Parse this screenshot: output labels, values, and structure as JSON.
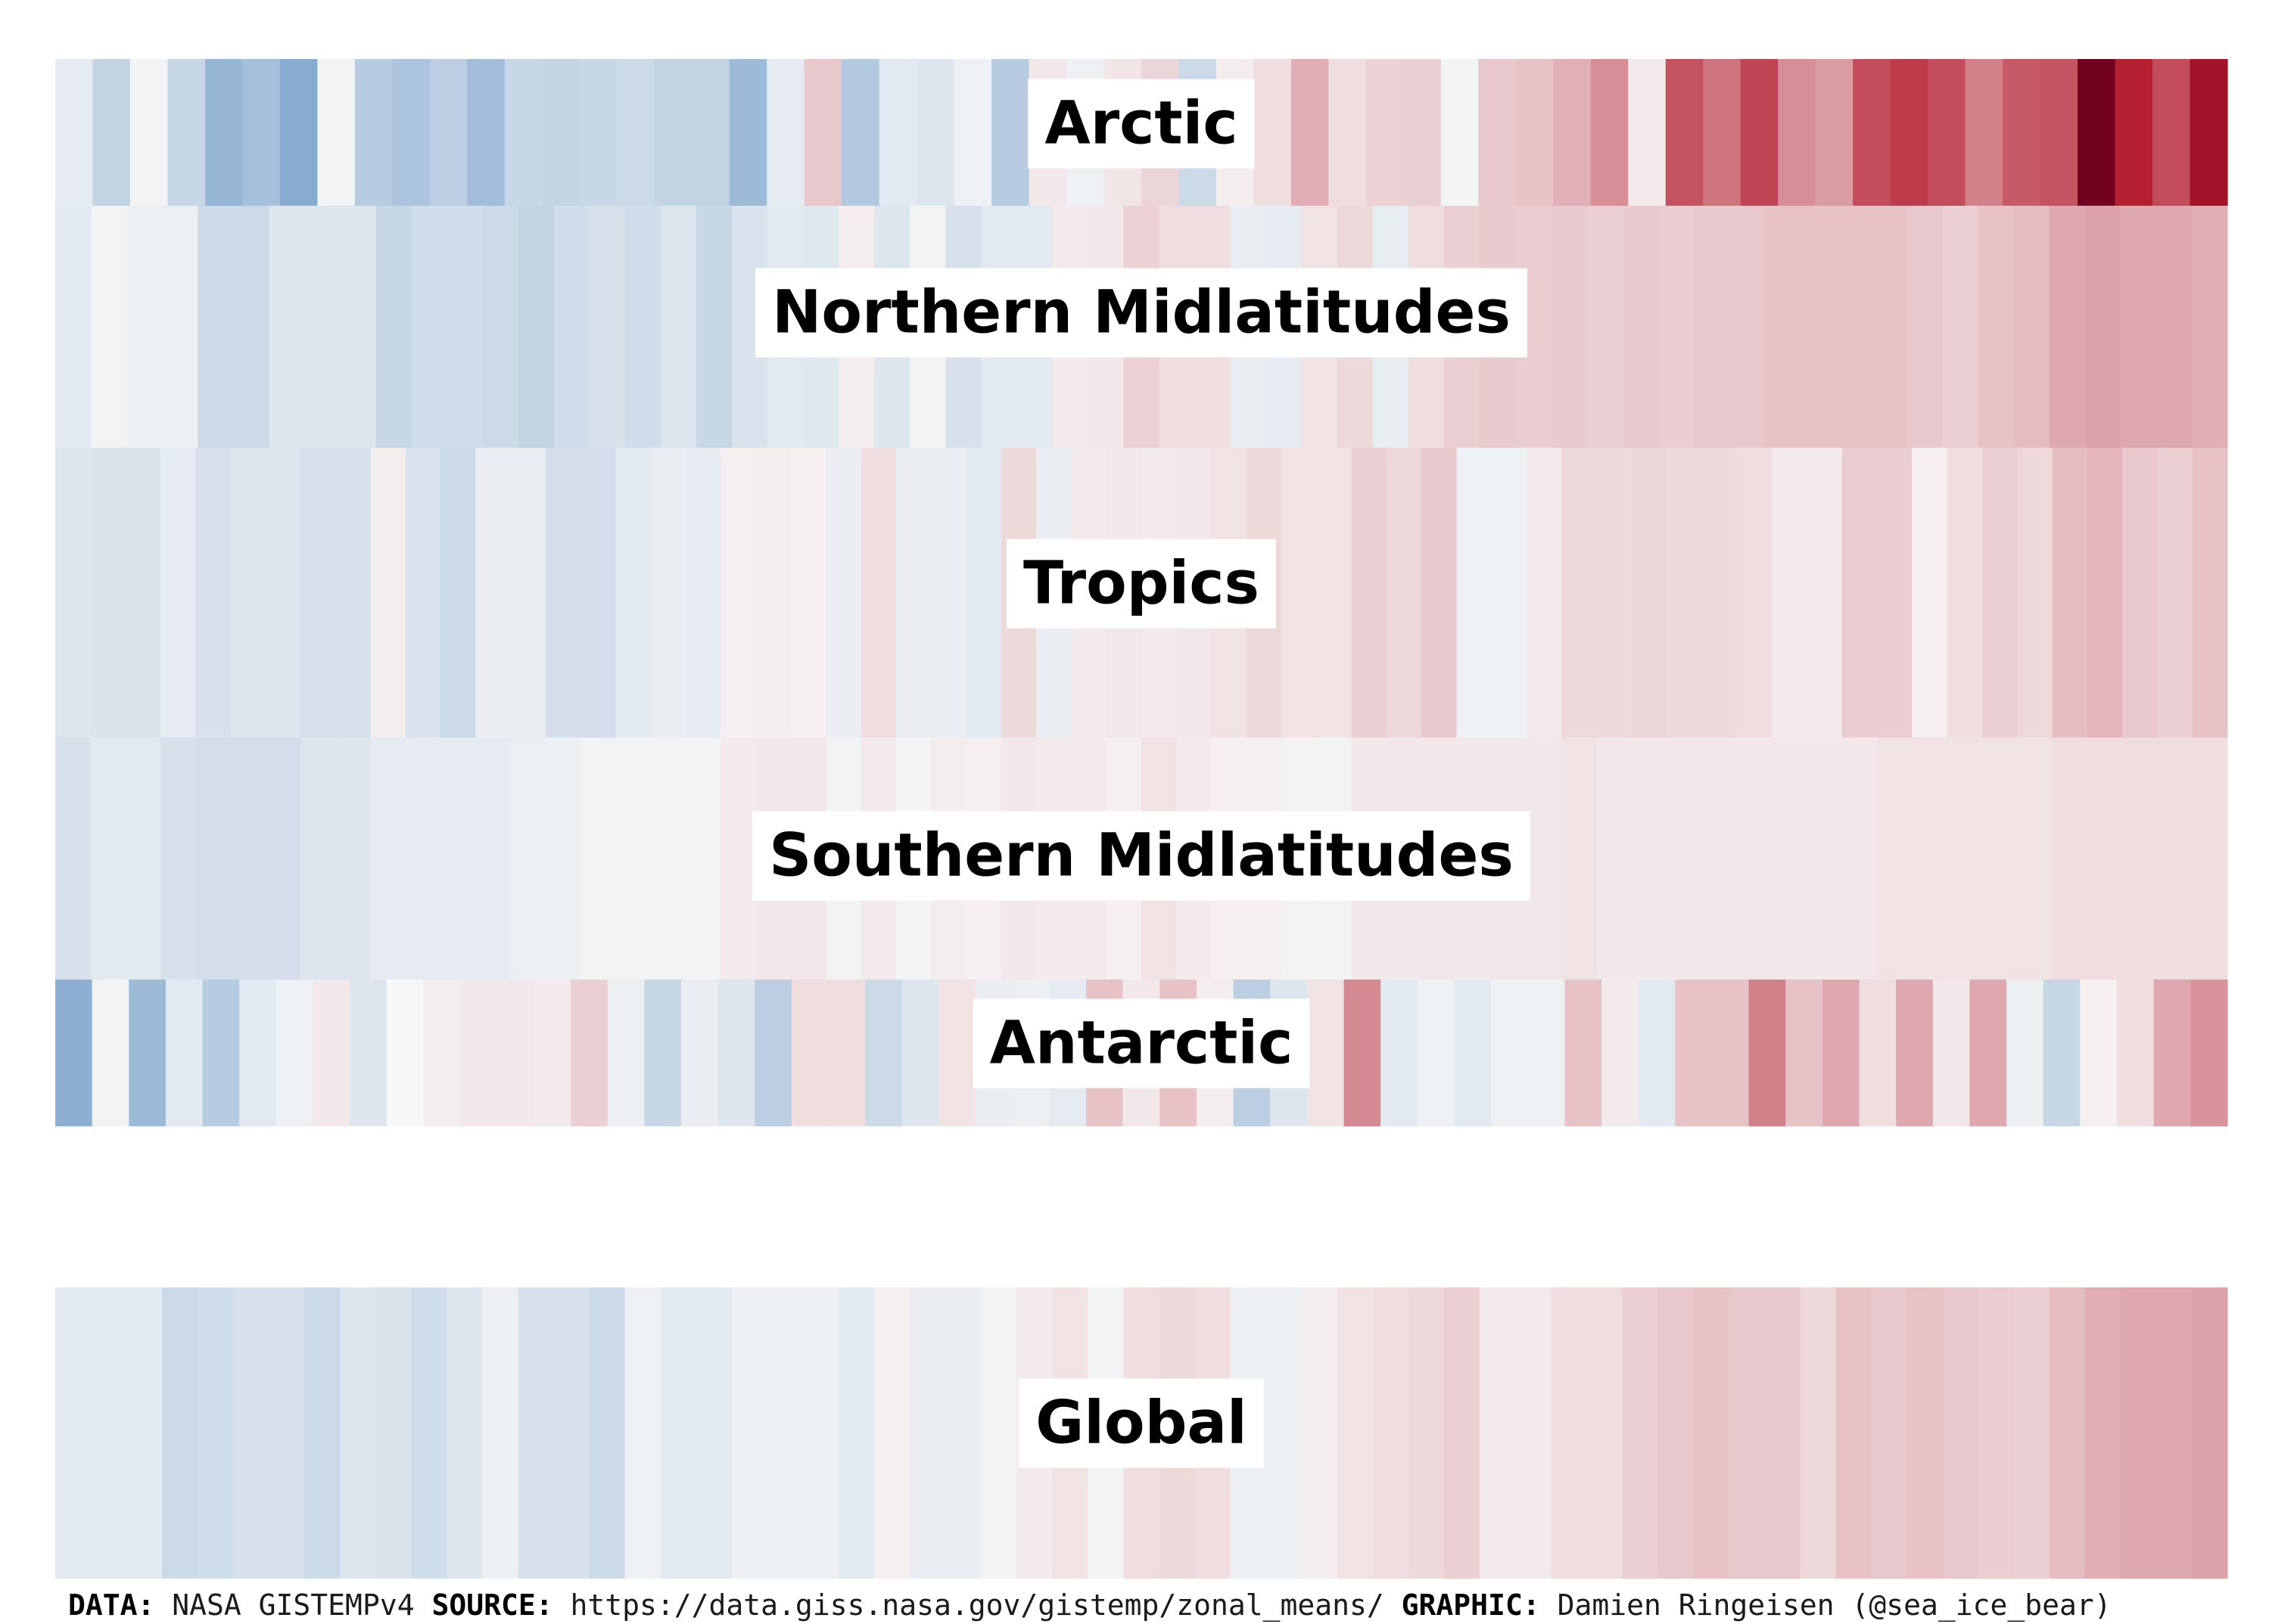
{
  "chart_data": {
    "type": "heatmap",
    "description": "Warming stripes by latitude band; one stripe per period, colored by temperature anomaly (blue = cooler, red = warmer)",
    "color_scale": {
      "negative": "#2166ac",
      "neutral": "#f7f7f7",
      "positive": "#b2182b",
      "extreme_positive": "#67001f"
    },
    "anomaly_range": [
      -1,
      1
    ],
    "bands": [
      {
        "name": "Arctic",
        "values": [
          -0.08,
          -0.25,
          -0.03,
          -0.22,
          -0.45,
          -0.38,
          -0.52,
          -0.03,
          -0.3,
          -0.35,
          -0.28,
          -0.4,
          -0.22,
          -0.24,
          -0.22,
          -0.2,
          -0.25,
          -0.25,
          -0.42,
          -0.08,
          0.18,
          -0.32,
          -0.1,
          -0.12,
          -0.04,
          -0.3,
          0.06,
          -0.04,
          0.07,
          0.13,
          -0.2,
          0.04,
          0.1,
          0.28,
          0.1,
          0.14,
          0.15,
          -0.02,
          0.18,
          0.2,
          0.27,
          0.4,
          0.05,
          0.63,
          0.5,
          0.68,
          0.4,
          0.35,
          0.65,
          0.72,
          0.65,
          0.45,
          0.6,
          0.62,
          0.98,
          0.82,
          0.65,
          0.88
        ]
      },
      {
        "name": "Northern Midlatitudes",
        "values": [
          -0.1,
          -0.03,
          -0.05,
          -0.05,
          -0.2,
          -0.2,
          -0.12,
          -0.12,
          -0.12,
          -0.22,
          -0.18,
          -0.18,
          -0.2,
          -0.24,
          -0.18,
          -0.15,
          -0.18,
          -0.12,
          -0.22,
          -0.14,
          -0.1,
          -0.11,
          0.04,
          -0.12,
          -0.03,
          -0.15,
          -0.1,
          -0.1,
          0.05,
          0.06,
          0.14,
          0.1,
          0.1,
          -0.07,
          -0.08,
          0.08,
          0.12,
          -0.07,
          0.1,
          0.15,
          0.17,
          0.16,
          0.17,
          0.15,
          0.17,
          0.16,
          0.18,
          0.18,
          0.2,
          0.2,
          0.2,
          0.2,
          0.18,
          0.15,
          0.2,
          0.22,
          0.3,
          0.32,
          0.3,
          0.3,
          0.28
        ]
      },
      {
        "name": "Tropics",
        "values": [
          -0.12,
          -0.13,
          -0.13,
          -0.08,
          -0.15,
          -0.12,
          -0.12,
          -0.16,
          -0.15,
          0.04,
          -0.14,
          -0.2,
          -0.06,
          -0.06,
          -0.17,
          -0.17,
          -0.1,
          -0.06,
          -0.08,
          0.03,
          0.04,
          0.03,
          -0.06,
          0.1,
          -0.06,
          -0.06,
          -0.1,
          0.12,
          -0.06,
          0.05,
          0.06,
          0.05,
          0.06,
          0.08,
          0.12,
          0.08,
          0.08,
          0.15,
          0.12,
          0.18,
          -0.04,
          -0.04,
          0.05,
          0.12,
          0.12,
          0.13,
          0.12,
          0.12,
          0.1,
          0.05,
          0.05,
          0.16,
          0.16,
          0.03,
          0.1,
          0.15,
          0.12,
          0.22,
          0.25,
          0.18,
          0.15,
          0.2
        ]
      },
      {
        "name": "Southern Midlatitudes",
        "values": [
          -0.15,
          -0.1,
          -0.1,
          -0.15,
          -0.17,
          -0.17,
          -0.17,
          -0.12,
          -0.12,
          -0.08,
          -0.08,
          -0.08,
          -0.08,
          -0.05,
          -0.05,
          -0.03,
          -0.03,
          -0.03,
          -0.03,
          0.05,
          0.06,
          0.06,
          -0.03,
          0.05,
          -0.02,
          0.04,
          0.03,
          0.06,
          0.05,
          0.05,
          0.03,
          0.08,
          0.05,
          0.03,
          0.03,
          0.02,
          -0.03,
          0.06,
          0.06,
          0.06,
          0.06,
          0.06,
          0.06,
          0.08,
          0.06,
          0.06,
          0.06,
          0.06,
          0.06,
          0.06,
          0.06,
          0.06,
          0.08,
          0.08,
          0.08,
          0.08,
          0.08,
          0.1,
          0.1,
          0.1,
          0.1,
          0.1
        ]
      },
      {
        "name": "Antarctic",
        "values": [
          -0.5,
          -0.03,
          -0.42,
          -0.1,
          -0.3,
          -0.1,
          -0.04,
          0.06,
          -0.12,
          0.0,
          0.04,
          0.06,
          0.06,
          0.05,
          0.15,
          -0.05,
          -0.22,
          -0.06,
          -0.12,
          -0.28,
          0.1,
          0.1,
          -0.2,
          -0.12,
          0.08,
          -0.06,
          -0.05,
          -0.08,
          0.2,
          0.06,
          0.2,
          0.04,
          -0.28,
          -0.12,
          0.08,
          0.42,
          -0.1,
          -0.04,
          -0.1,
          -0.04,
          -0.04,
          0.2,
          0.05,
          -0.1,
          0.2,
          0.2,
          0.45,
          0.2,
          0.3,
          0.1,
          0.3,
          0.06,
          0.3,
          -0.05,
          -0.22,
          0.03,
          0.1,
          0.3,
          0.38
        ]
      },
      {
        "name": "Global",
        "values": [
          -0.1,
          -0.1,
          -0.1,
          -0.2,
          -0.18,
          -0.15,
          -0.15,
          -0.2,
          -0.12,
          -0.13,
          -0.18,
          -0.12,
          -0.05,
          -0.15,
          -0.15,
          -0.2,
          -0.04,
          -0.1,
          -0.1,
          -0.05,
          -0.05,
          -0.05,
          -0.1,
          0.03,
          -0.06,
          -0.06,
          0.02,
          0.05,
          0.08,
          -0.03,
          0.1,
          0.12,
          0.1,
          -0.05,
          -0.05,
          0.04,
          0.08,
          0.1,
          0.12,
          0.15,
          0.05,
          0.05,
          0.1,
          0.1,
          0.15,
          0.18,
          0.2,
          0.18,
          0.18,
          0.12,
          0.2,
          0.18,
          0.2,
          0.18,
          0.16,
          0.15,
          0.22,
          0.28,
          0.3,
          0.3,
          0.32
        ]
      }
    ]
  },
  "footer": {
    "data_key": "DATA:",
    "data_value": "NASA GISTEMPv4",
    "source_key": "SOURCE:",
    "source_value": "https://data.giss.nasa.gov/gistemp/zonal_means/",
    "graphic_key": "GRAPHIC:",
    "graphic_value": "Damien Ringeisen (@sea_ice_bear)"
  }
}
